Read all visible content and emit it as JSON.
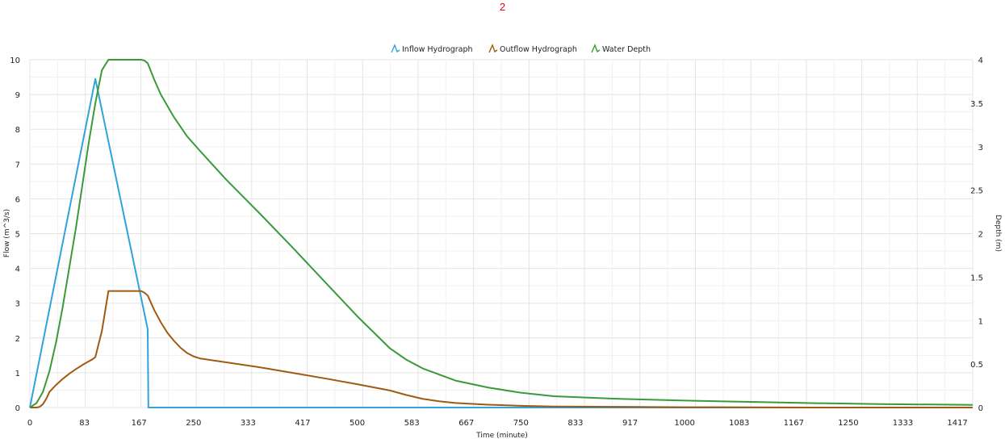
{
  "chart_data": {
    "type": "line",
    "title": "2",
    "xlabel": "Time (minute)",
    "ylabel": "Flow (m^3/s)",
    "y2label": "Depth (m)",
    "xlim": [
      0,
      1440
    ],
    "ylim": [
      0,
      10
    ],
    "y2lim": [
      0,
      4
    ],
    "x_ticks": [
      "0",
      "83",
      "167",
      "250",
      "333",
      "417",
      "500",
      "583",
      "667",
      "750",
      "833",
      "917",
      "1000",
      "1083",
      "1167",
      "1250",
      "1333",
      "1417"
    ],
    "y_ticks": [
      "0",
      "1",
      "2",
      "3",
      "4",
      "5",
      "6",
      "7",
      "8",
      "9",
      "10"
    ],
    "y2_ticks": [
      "0",
      "0.5",
      "1",
      "1.5",
      "2",
      "2.5",
      "3",
      "3.5",
      "4"
    ],
    "grid": true,
    "legend_position": "top-center",
    "series": [
      {
        "name": "Inflow Hydrograph",
        "axis": "left",
        "color": "#2ea3dc",
        "x": [
          0,
          100,
          180,
          181,
          1440
        ],
        "y": [
          0,
          9.45,
          2.25,
          0,
          0
        ]
      },
      {
        "name": "Outflow Hydrograph",
        "axis": "left",
        "color": "#a05a12",
        "x": [
          0,
          10,
          15,
          20,
          25,
          30,
          40,
          50,
          60,
          70,
          80,
          90,
          95,
          100,
          110,
          120,
          130,
          150,
          170,
          175,
          180,
          190,
          200,
          210,
          220,
          230,
          240,
          250,
          260,
          300,
          350,
          400,
          450,
          500,
          550,
          575,
          600,
          625,
          650,
          700,
          750,
          800,
          900,
          1000,
          1200,
          1440
        ],
        "y": [
          0,
          0,
          0.02,
          0.1,
          0.25,
          0.45,
          0.65,
          0.82,
          0.97,
          1.1,
          1.22,
          1.33,
          1.38,
          1.45,
          2.2,
          3.35,
          3.35,
          3.35,
          3.35,
          3.3,
          3.22,
          2.8,
          2.45,
          2.15,
          1.92,
          1.72,
          1.57,
          1.47,
          1.41,
          1.3,
          1.16,
          1.0,
          0.84,
          0.67,
          0.49,
          0.36,
          0.25,
          0.18,
          0.13,
          0.08,
          0.05,
          0.03,
          0.02,
          0.01,
          0.0,
          0.0
        ]
      },
      {
        "name": "Water Depth",
        "axis": "right",
        "color": "#3a9a3a",
        "x": [
          0,
          10,
          20,
          30,
          40,
          50,
          60,
          70,
          80,
          90,
          100,
          110,
          120,
          130,
          150,
          170,
          175,
          180,
          190,
          200,
          220,
          240,
          260,
          300,
          350,
          400,
          450,
          500,
          550,
          575,
          600,
          650,
          700,
          750,
          800,
          900,
          1000,
          1100,
          1200,
          1300,
          1440
        ],
        "y": [
          0,
          0.05,
          0.18,
          0.42,
          0.75,
          1.15,
          1.6,
          2.05,
          2.55,
          3.05,
          3.5,
          3.88,
          4.0,
          4.0,
          4.0,
          4.0,
          3.99,
          3.96,
          3.77,
          3.6,
          3.34,
          3.12,
          2.95,
          2.62,
          2.24,
          1.85,
          1.45,
          1.05,
          0.68,
          0.55,
          0.45,
          0.31,
          0.23,
          0.17,
          0.13,
          0.1,
          0.08,
          0.065,
          0.05,
          0.04,
          0.03
        ]
      }
    ]
  }
}
